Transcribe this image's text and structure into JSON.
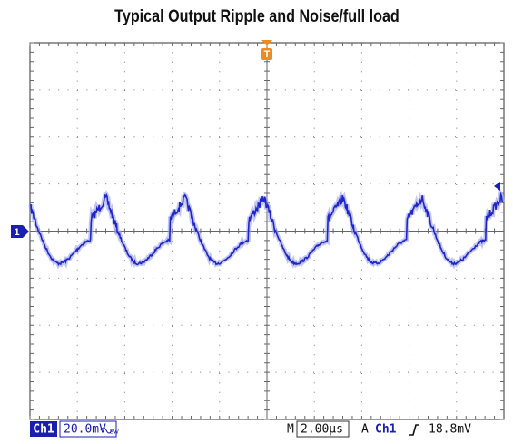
{
  "header": {
    "title": "Typical Output Ripple and Noise/full load"
  },
  "markers": {
    "trigger": "T",
    "channel": "1"
  },
  "status": {
    "channel": "Ch1",
    "scale": "20.0mV",
    "bandwidth": "BW",
    "time_prefix": "M",
    "timebase": "2.00µs",
    "trigger_mode": "A",
    "trigger_channel": "Ch1",
    "trigger_level": "18.8mV"
  }
}
